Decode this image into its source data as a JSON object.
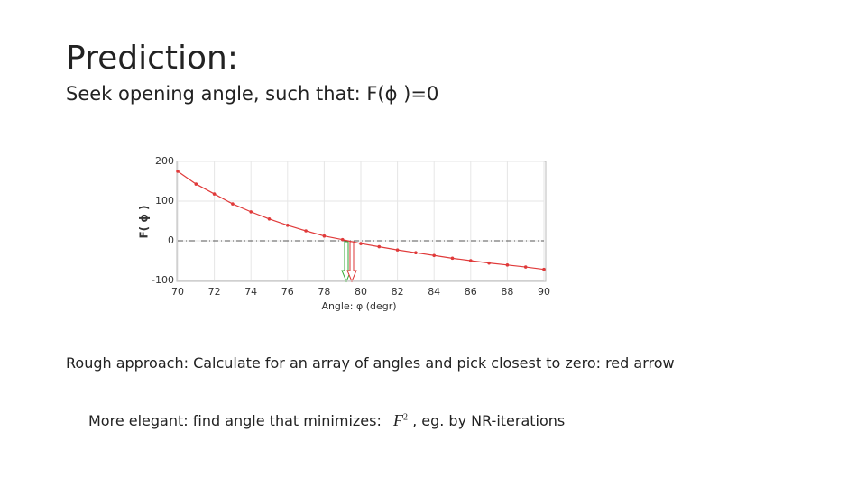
{
  "title": "Prediction:",
  "subtitle": "Seek opening angle, such that: F(ϕ )=0",
  "chart_data": {
    "type": "line",
    "x": [
      70,
      71,
      72,
      73,
      74,
      75,
      76,
      77,
      78,
      79,
      80,
      81,
      82,
      83,
      84,
      85,
      86,
      87,
      88,
      89,
      90
    ],
    "values": [
      175,
      143,
      118,
      93,
      73,
      55,
      39,
      25,
      12,
      3,
      -7,
      -15,
      -23,
      -30,
      -37,
      -44,
      -50,
      -56,
      -61,
      -66,
      -72
    ],
    "color": "#e03a3a",
    "xlim": [
      70,
      90
    ],
    "xticks": [
      70,
      72,
      74,
      76,
      78,
      80,
      82,
      84,
      86,
      88,
      90
    ],
    "ylim": [
      -100,
      200
    ],
    "yticks": [
      -100,
      0,
      100,
      200
    ],
    "grid": true,
    "hlines": [
      0
    ],
    "xlabel": "Angle: φ  (degr)",
    "ylabel": "F( ϕ )"
  },
  "note": "Rough approach: Calculate  for an array of angles and pick closest to zero: red arrow",
  "elegant": {
    "text": "More elegant: find angle that minimizes:",
    "formula_base": "F",
    "formula_exponent": "2",
    "suffix": ", eg. by NR-iterations"
  }
}
